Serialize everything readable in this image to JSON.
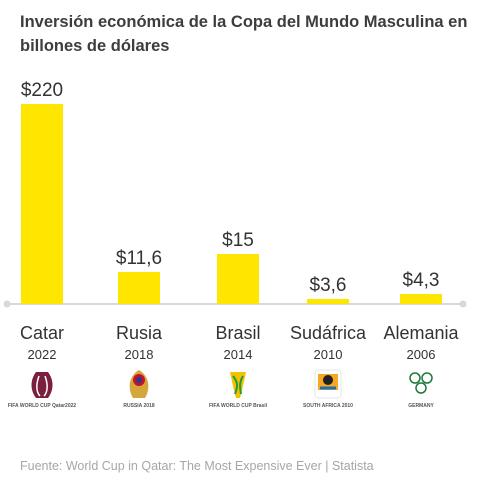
{
  "chart_data": {
    "type": "bar",
    "title": "Inversión económica de la Copa del Mundo Masculina en billones de dólares",
    "categories": [
      "Catar",
      "Rusia",
      "Brasil",
      "Sudáfrica",
      "Alemania"
    ],
    "years": [
      "2022",
      "2018",
      "2014",
      "2010",
      "2006"
    ],
    "values": [
      220,
      11.6,
      15,
      3.6,
      4.3
    ],
    "value_labels": [
      "$220",
      "$11,6",
      "$15",
      "$3,6",
      "$4,3"
    ],
    "color": "#ffe600",
    "baseline_color": "#d9d9d9",
    "xlabel": "",
    "ylabel": "",
    "grid": false,
    "note": "bar heights are not drawn to a linear scale"
  },
  "bar_display_fraction": [
    1.0,
    0.16,
    0.25,
    0.025,
    0.05
  ],
  "logos": [
    {
      "icon": "world-cup-qatar-2022-emblem-icon",
      "text": "FIFA WORLD CUP Qatar2022"
    },
    {
      "icon": "world-cup-russia-2018-emblem-icon",
      "text": "RUSSIA 2018"
    },
    {
      "icon": "world-cup-brasil-2014-emblem-icon",
      "text": "FIFA WORLD CUP Brasil"
    },
    {
      "icon": "world-cup-south-africa-2010-emblem-icon",
      "text": "SOUTH AFRICA 2010"
    },
    {
      "icon": "world-cup-germany-2006-emblem-icon",
      "text": "GERMANY"
    }
  ],
  "source": "Fuente: World Cup in Qatar: The Most Expensive Ever | Statista"
}
